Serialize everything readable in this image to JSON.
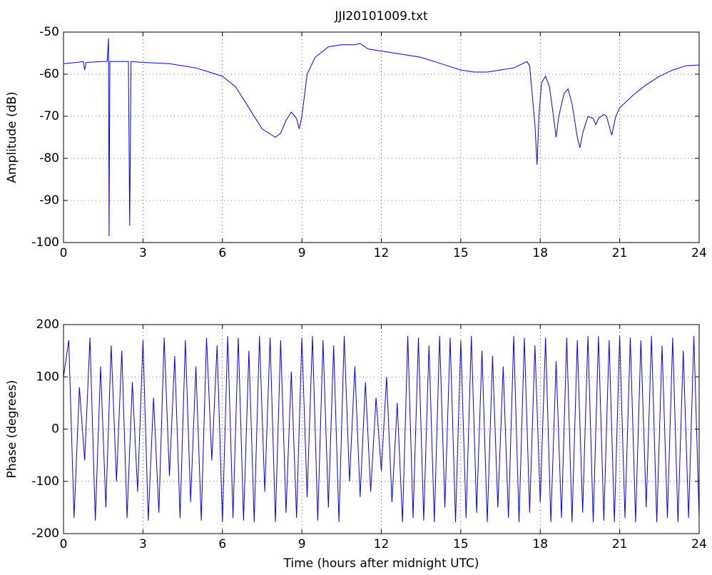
{
  "chart_data": [
    {
      "type": "line",
      "title": "JJI20101009.txt",
      "y_label": "Amplitude (dB)",
      "xlim": [
        0,
        24
      ],
      "xticks": [
        0,
        3,
        6,
        9,
        12,
        15,
        18,
        21,
        24
      ],
      "ylim": [
        -100,
        -50
      ],
      "yticks": [
        -100,
        -90,
        -80,
        -70,
        -60,
        -50
      ],
      "grid": true,
      "series": [
        {
          "color": "#0000ff",
          "x": [
            0,
            0.5,
            0.75,
            0.8,
            0.85,
            1.5,
            1.65,
            1.7,
            1.72,
            1.75,
            2.4,
            2.45,
            2.5,
            2.55,
            3,
            4,
            5,
            5.5,
            6,
            6.5,
            7,
            7.5,
            8,
            8.2,
            8.4,
            8.6,
            8.8,
            8.9,
            9,
            9.2,
            9.5,
            10,
            10.5,
            11,
            11.2,
            11.5,
            12,
            12.5,
            13,
            13.5,
            14,
            14.5,
            15,
            15.5,
            16,
            16.5,
            17,
            17.5,
            17.6,
            17.7,
            17.8,
            17.88,
            17.95,
            18.05,
            18.2,
            18.35,
            18.5,
            18.6,
            18.7,
            18.9,
            19.05,
            19.2,
            19.4,
            19.5,
            19.6,
            19.8,
            20,
            20.1,
            20.2,
            20.4,
            20.5,
            20.7,
            20.85,
            21,
            21.5,
            22,
            22.5,
            23,
            23.5,
            24
          ],
          "values": [
            -57.5,
            -57.2,
            -57,
            -59,
            -57.2,
            -57,
            -57,
            -51.5,
            -98.5,
            -57,
            -57,
            -57,
            -96,
            -57,
            -57.2,
            -57.5,
            -58.5,
            -59.5,
            -60.5,
            -63,
            -68,
            -73,
            -75,
            -74,
            -71,
            -69,
            -70.5,
            -73,
            -70,
            -60,
            -56,
            -53.5,
            -53,
            -53,
            -52.7,
            -54,
            -54.5,
            -55,
            -55.5,
            -56,
            -57,
            -58,
            -59,
            -59.5,
            -59.5,
            -59,
            -58.5,
            -57,
            -58,
            -65,
            -72,
            -81.5,
            -70,
            -62,
            -60.5,
            -63,
            -70,
            -75,
            -70,
            -64.5,
            -63.5,
            -67,
            -75,
            -77.5,
            -74,
            -70,
            -70.5,
            -72,
            -70.5,
            -69.5,
            -70,
            -74.5,
            -70,
            -68,
            -65,
            -62.5,
            -60.5,
            -59,
            -58,
            -57.8
          ]
        }
      ]
    },
    {
      "type": "line",
      "x_label": "Time (hours after midnight UTC)",
      "y_label": "Phase (degrees)",
      "xlim": [
        0,
        24
      ],
      "xticks": [
        0,
        3,
        6,
        9,
        12,
        15,
        18,
        21,
        24
      ],
      "ylim": [
        -200,
        200
      ],
      "yticks": [
        -200,
        -100,
        0,
        100,
        200
      ],
      "grid": true,
      "series": [
        {
          "color": "#0000ff",
          "x": [
            0,
            0.2,
            0.4,
            0.6,
            0.8,
            1,
            1.2,
            1.4,
            1.6,
            1.8,
            2,
            2.2,
            2.4,
            2.6,
            2.8,
            3,
            3.2,
            3.4,
            3.6,
            3.8,
            4,
            4.2,
            4.4,
            4.6,
            4.8,
            5,
            5.2,
            5.4,
            5.6,
            5.8,
            6,
            6.2,
            6.4,
            6.6,
            6.8,
            7,
            7.2,
            7.4,
            7.6,
            7.8,
            8,
            8.2,
            8.4,
            8.6,
            8.8,
            9,
            9.2,
            9.4,
            9.6,
            9.8,
            10,
            10.2,
            10.4,
            10.6,
            10.8,
            11,
            11.2,
            11.4,
            11.6,
            11.8,
            12,
            12.2,
            12.4,
            12.6,
            12.8,
            13,
            13.2,
            13.4,
            13.6,
            13.8,
            14,
            14.2,
            14.4,
            14.6,
            14.8,
            15,
            15.2,
            15.4,
            15.6,
            15.8,
            16,
            16.2,
            16.4,
            16.6,
            16.8,
            17,
            17.2,
            17.4,
            17.6,
            17.8,
            18,
            18.2,
            18.4,
            18.6,
            18.8,
            19,
            19.2,
            19.4,
            19.6,
            19.8,
            20,
            20.2,
            20.4,
            20.6,
            20.8,
            21,
            21.2,
            21.4,
            21.6,
            21.8,
            22,
            22.2,
            22.4,
            22.6,
            22.8,
            23,
            23.2,
            23.4,
            23.6,
            23.8,
            24
          ],
          "values": [
            100,
            170,
            -170,
            80,
            -60,
            175,
            -175,
            120,
            -150,
            160,
            -100,
            150,
            -170,
            90,
            -120,
            170,
            -175,
            60,
            -160,
            175,
            -90,
            140,
            -170,
            170,
            -140,
            120,
            -175,
            175,
            -60,
            160,
            -178,
            178,
            -170,
            175,
            -175,
            150,
            -178,
            178,
            -120,
            175,
            -178,
            170,
            -160,
            110,
            -170,
            175,
            -130,
            178,
            -175,
            170,
            -150,
            160,
            -178,
            178,
            -100,
            120,
            -130,
            90,
            -120,
            60,
            -80,
            100,
            -140,
            50,
            -178,
            178,
            -170,
            175,
            -175,
            160,
            -178,
            178,
            -150,
            175,
            -178,
            170,
            -170,
            178,
            -160,
            150,
            -178,
            140,
            -150,
            120,
            -170,
            178,
            -178,
            175,
            -160,
            160,
            -140,
            175,
            -178,
            130,
            -170,
            175,
            -178,
            170,
            -160,
            178,
            -178,
            178,
            -175,
            170,
            -178,
            178,
            -170,
            175,
            -178,
            170,
            -150,
            178,
            -178,
            160,
            -170,
            175,
            -178,
            150,
            -170,
            178,
            -170
          ]
        }
      ]
    }
  ]
}
